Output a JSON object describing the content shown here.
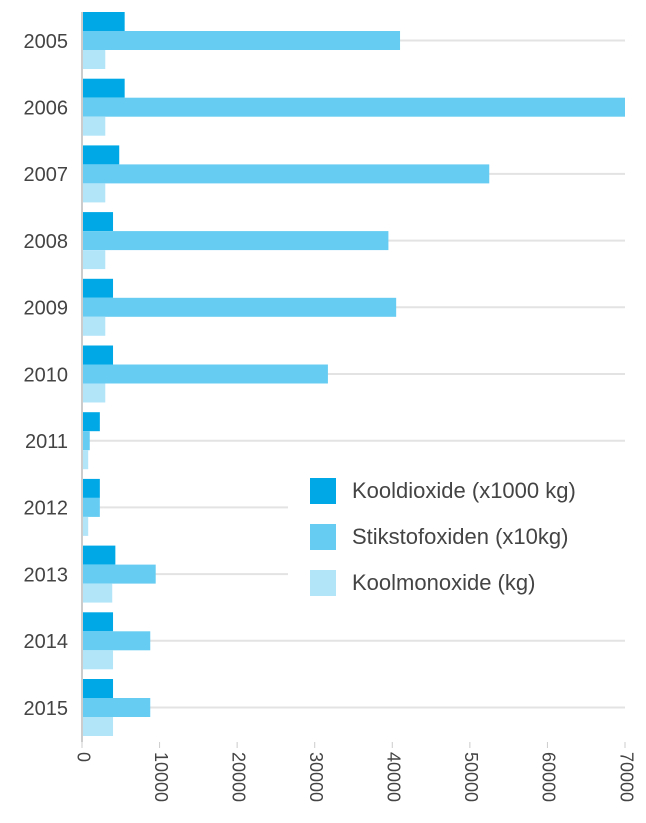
{
  "chart_data": {
    "type": "barh",
    "categories": [
      "2005",
      "2006",
      "2007",
      "2008",
      "2009",
      "2010",
      "2011",
      "2012",
      "2013",
      "2014",
      "2015"
    ],
    "series": [
      {
        "name": "Kooldioxide (x1000 kg)",
        "color": "#00a9e6",
        "values": [
          5500,
          5500,
          4800,
          4000,
          4000,
          4000,
          2300,
          2300,
          4300,
          4000,
          4000
        ]
      },
      {
        "name": "Stikstofoxiden (x10kg)",
        "color": "#66ccf2",
        "values": [
          41000,
          70000,
          52500,
          39500,
          40500,
          31700,
          1000,
          2300,
          9500,
          8800,
          8800
        ]
      },
      {
        "name": "Koolmonoxide (kg)",
        "color": "#b3e5f9",
        "values": [
          3000,
          3000,
          3000,
          3000,
          3000,
          3000,
          800,
          800,
          3900,
          4000,
          4000
        ]
      }
    ],
    "xlim": [
      0,
      70000
    ],
    "xticks": [
      0,
      10000,
      20000,
      30000,
      40000,
      50000,
      60000,
      70000
    ],
    "grid": true,
    "legend": "right"
  }
}
